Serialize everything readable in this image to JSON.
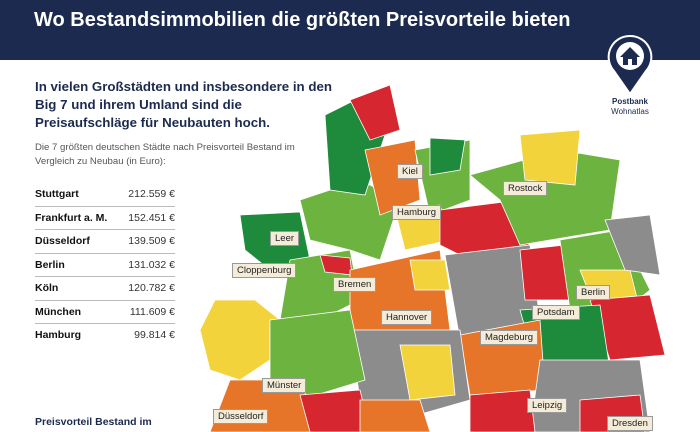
{
  "title": "Wo Bestandsimmobilien die größten Preisvorteile bieten",
  "lead": "In vielen Großstädten und insbesondere in den Big 7 und ihrem Umland sind die Preisaufschläge für Neubauten hoch.",
  "subtitle": "Die 7 größten deutschen Städte nach Preisvorteil Bestand im Vergleich zu Neubau (in Euro):",
  "cities": [
    {
      "name": "Stuttgart",
      "value": "212.559 €"
    },
    {
      "name": "Frankfurt a. M.",
      "value": "152.451 €"
    },
    {
      "name": "Düsseldorf",
      "value": "139.509 €"
    },
    {
      "name": "Berlin",
      "value": "131.032 €"
    },
    {
      "name": "Köln",
      "value": "120.782 €"
    },
    {
      "name": "München",
      "value": "111.609 €"
    },
    {
      "name": "Hamburg",
      "value": "99.814 €"
    }
  ],
  "legend_title": "Preisvorteil Bestand im",
  "logo": {
    "brand": "Postbank",
    "product": "Wohnatlas",
    "icon": "house-pin-icon"
  },
  "map_labels": [
    "Kiel",
    "Hamburg",
    "Rostock",
    "Leer",
    "Cloppenburg",
    "Bremen",
    "Hannover",
    "Berlin",
    "Potsdam",
    "Magdeburg",
    "Münster",
    "Düsseldorf",
    "Leipzig",
    "Dresden"
  ],
  "colors": {
    "header": "#1c2a4f",
    "dark_green": "#1e8a3c",
    "green": "#6cb33f",
    "yellow": "#f3d33b",
    "orange": "#e6752a",
    "red": "#d6262f",
    "grey": "#8c8c8c"
  }
}
